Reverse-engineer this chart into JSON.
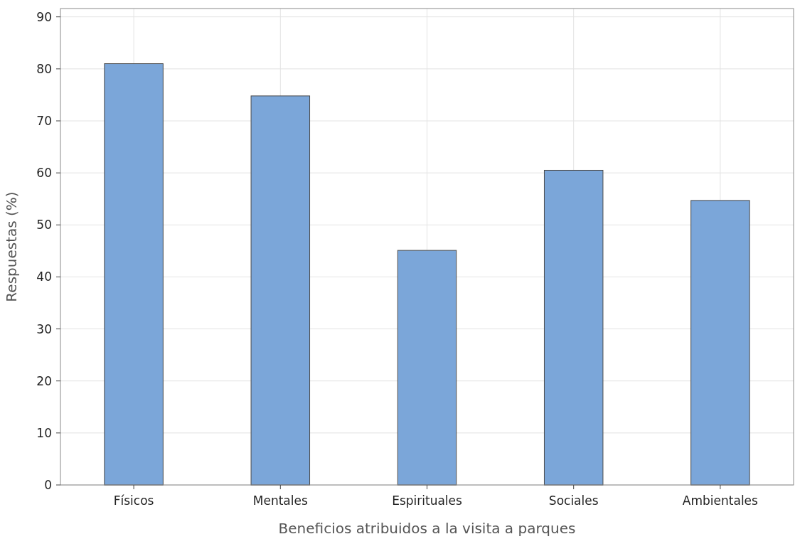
{
  "chart_data": {
    "type": "bar",
    "xlabel": "Beneficios atribuidos a la visita a parques",
    "ylabel": "Respuestas (%)",
    "categories": [
      "Físicos",
      "Mentales",
      "Espirituales",
      "Sociales",
      "Ambientales"
    ],
    "values": [
      81,
      74.8,
      45.1,
      60.5,
      54.7
    ],
    "color": "#7ba6d9",
    "ylim": [
      0,
      91.6
    ],
    "yticks": [
      0,
      10,
      20,
      30,
      40,
      50,
      60,
      70,
      80,
      90
    ],
    "grid": true
  }
}
